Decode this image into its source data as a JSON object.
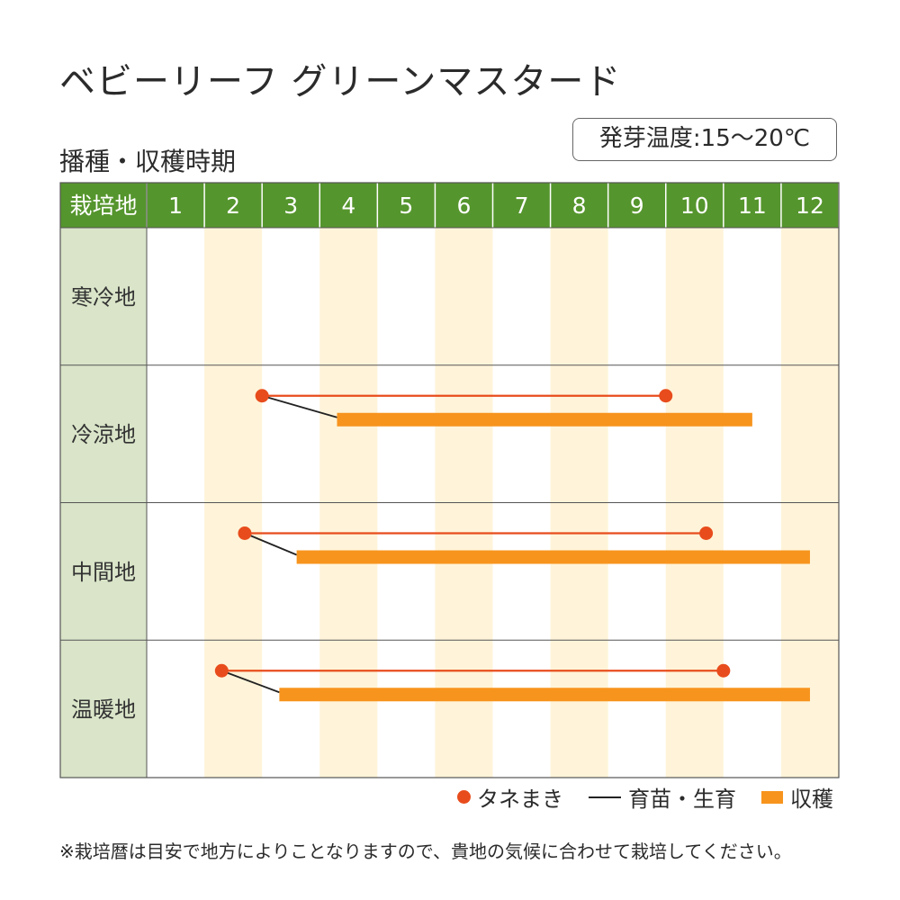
{
  "title": "ベビーリーフ グリーンマスタード",
  "subtitle": "播種・収穫時期",
  "germination_temp": "発芽温度:15〜20℃",
  "colors": {
    "header_bg": "#55952d",
    "region_bg": "#d9e4c8",
    "alt_col_bg": "#fff4d9",
    "sowing": "#e84c1c",
    "harvest": "#f7941d",
    "growth": "#222222"
  },
  "legend": {
    "sowing": "タネまき",
    "growth": "育苗・生育",
    "harvest": "収穫"
  },
  "note": "※栽培暦は目安で地方によりことなりますので、貴地の気候に合わせて栽培してください。",
  "chart_data": {
    "type": "gantt",
    "header_label": "栽培地",
    "months": [
      "1",
      "2",
      "3",
      "4",
      "5",
      "6",
      "7",
      "8",
      "9",
      "10",
      "11",
      "12"
    ],
    "rows": [
      {
        "region": "寒冷地",
        "sowing": null,
        "harvest": null
      },
      {
        "region": "冷涼地",
        "sowing": [
          3.0,
          10.0
        ],
        "harvest": [
          4.3,
          11.5
        ]
      },
      {
        "region": "中間地",
        "sowing": [
          2.7,
          10.7
        ],
        "harvest": [
          3.6,
          12.5
        ]
      },
      {
        "region": "温暖地",
        "sowing": [
          2.3,
          11.0
        ],
        "harvest": [
          3.3,
          12.5
        ]
      }
    ],
    "x_unit": "month"
  }
}
